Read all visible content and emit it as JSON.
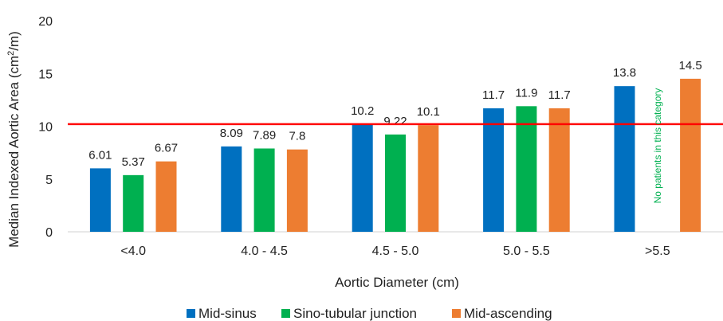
{
  "chart_data": {
    "type": "bar",
    "categories": [
      "<4.0",
      "4.0 - 4.5",
      "4.5 - 5.0",
      "5.0 - 5.5",
      ">5.5"
    ],
    "series": [
      {
        "name": "Mid-sinus",
        "color": "#0070C0",
        "values": [
          6.01,
          8.09,
          10.2,
          11.7,
          13.8
        ],
        "labels": [
          "6.01",
          "8.09",
          "10.2",
          "11.7",
          "13.8"
        ]
      },
      {
        "name": "Sino-tubular junction",
        "color": "#00B050",
        "values": [
          5.37,
          7.89,
          9.22,
          11.9,
          null
        ],
        "labels": [
          "5.37",
          "7.89",
          "9.22",
          "11.9",
          ""
        ]
      },
      {
        "name": "Mid-ascending",
        "color": "#ED7D31",
        "values": [
          6.67,
          7.8,
          10.1,
          11.7,
          14.5
        ],
        "labels": [
          "6.67",
          "7.8",
          "10.1",
          "11.7",
          "14.5"
        ]
      }
    ],
    "xlabel": "Aortic Diameter (cm)",
    "ylabel_main": "Median Indexed Aortic Area (cm",
    "ylabel_sup": "2",
    "ylabel_tail": "/m)",
    "ylim": [
      0,
      20
    ],
    "yticks": [
      "0",
      "5",
      "10",
      "15",
      "20"
    ],
    "reference_line": {
      "value": 10.2,
      "color": "#FF0000"
    },
    "annotation": {
      "text": "No patients in this category",
      "category": ">5.5",
      "series": "Sino-tubular junction",
      "color": "#00B050"
    },
    "legend_position": "bottom",
    "grid": false
  }
}
